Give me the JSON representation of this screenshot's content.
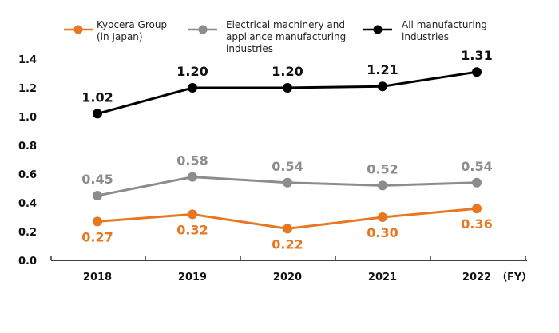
{
  "chart_data": {
    "type": "line",
    "categories": [
      "2018",
      "2019",
      "2020",
      "2021",
      "2022"
    ],
    "x_unit": "（FY）",
    "ylim": [
      0,
      1.4
    ],
    "yticks": [
      "0.0",
      "0.2",
      "0.4",
      "0.6",
      "0.8",
      "1.0",
      "1.2",
      "1.4"
    ],
    "grid": false,
    "legend_position": "top",
    "series": [
      {
        "name_lines": [
          "Kyocera Group",
          "(in Japan)"
        ],
        "color": "#e87722",
        "values": [
          0.27,
          0.32,
          0.22,
          0.3,
          0.36
        ],
        "labels": [
          "0.27",
          "0.32",
          "0.22",
          "0.30",
          "0.36"
        ],
        "label_side": "below"
      },
      {
        "name_lines": [
          "Electrical machinery and",
          " appliance manufacturing",
          "industries"
        ],
        "color": "#8c8c8c",
        "values": [
          0.45,
          0.58,
          0.54,
          0.52,
          0.54
        ],
        "labels": [
          "0.45",
          "0.58",
          "0.54",
          "0.52",
          "0.54"
        ],
        "label_side": "above"
      },
      {
        "name_lines": [
          "All manufacturing",
          "industries"
        ],
        "color": "#000000",
        "values": [
          1.02,
          1.2,
          1.2,
          1.21,
          1.31
        ],
        "labels": [
          "1.02",
          "1.20",
          "1.20",
          "1.21",
          "1.31"
        ],
        "label_side": "above"
      }
    ]
  }
}
